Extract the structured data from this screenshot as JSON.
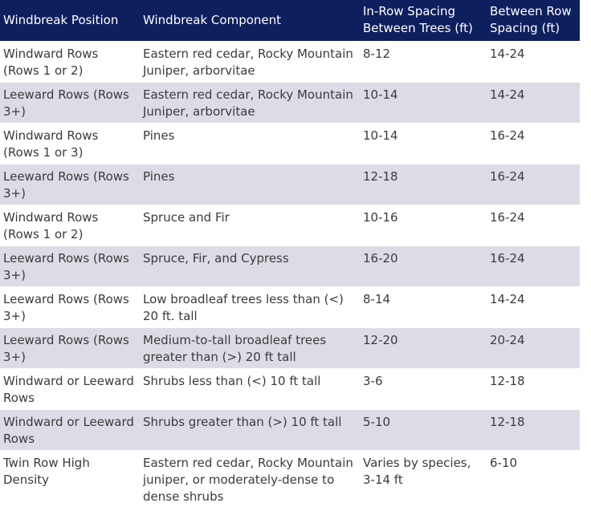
{
  "table": {
    "headers": [
      "Windbreak Position",
      "Windbreak Component",
      "In-Row Spacing Between Trees (ft)",
      "Between Row Spacing (ft)"
    ],
    "rows": [
      [
        "Windward Rows (Rows 1 or 2)",
        "Eastern red cedar, Rocky Mountain Juniper, arborvitae",
        "8-12",
        "14-24"
      ],
      [
        "Leeward Rows (Rows 3+)",
        "Eastern red cedar, Rocky Mountain Juniper, arborvitae",
        "10-14",
        "14-24"
      ],
      [
        "Windward Rows (Rows 1 or 3)",
        "Pines",
        "10-14",
        "16-24"
      ],
      [
        "Leeward Rows (Rows 3+)",
        "Pines",
        "12-18",
        "16-24"
      ],
      [
        "Windward Rows (Rows 1 or 2)",
        "Spruce and Fir",
        "10-16",
        "16-24"
      ],
      [
        "Leeward Rows (Rows 3+)",
        "Spruce, Fir, and Cypress",
        "16-20",
        "16-24"
      ],
      [
        "Leeward Rows (Rows 3+)",
        "Low broadleaf trees less than (<) 20 ft. tall",
        "8-14",
        "14-24"
      ],
      [
        "Leeward Rows (Rows 3+)",
        "Medium-to-tall broadleaf trees greater than (>) 20 ft tall",
        "12-20",
        "20-24"
      ],
      [
        "Windward or Leeward Rows",
        "Shrubs less than (<) 10 ft tall",
        "3-6",
        "12-18"
      ],
      [
        "Windward or Leeward Rows",
        "Shrubs greater than (>) 10 ft tall",
        "5-10",
        "12-18"
      ],
      [
        "Twin Row High Density",
        "Eastern red cedar, Rocky Mountain juniper, or moderately-dense to dense shrubs",
        "Varies by species, 3-14 ft",
        "6-10"
      ]
    ]
  },
  "colors": {
    "header_bg": "#0e1f5e",
    "header_text": "#ffffff",
    "stripe": "#dcdce6",
    "text": "#3b3b3b"
  }
}
